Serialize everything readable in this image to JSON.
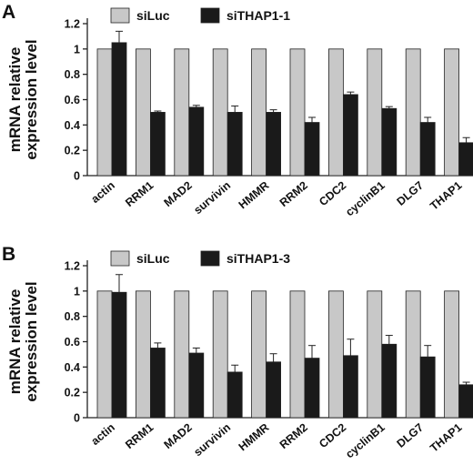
{
  "chart_data": [
    {
      "type": "bar",
      "panel_label": "A",
      "ylabel_line1": "mRNA relative",
      "ylabel_line2": "expression level",
      "ylim": [
        0,
        1.2
      ],
      "yticks": [
        "0",
        "0.2",
        "0.4",
        "0.6",
        "0.8",
        "1",
        "1.2"
      ],
      "categories": [
        "actin",
        "RRM1",
        "MAD2",
        "survivin",
        "HMMR",
        "RRM2",
        "CDC2",
        "cyclinB1",
        "DLG7",
        "THAP1"
      ],
      "legend_position": "top",
      "series": [
        {
          "name": "siLuc",
          "color": "#c8c8c8",
          "values": [
            1,
            1,
            1,
            1,
            1,
            1,
            1,
            1,
            1,
            1
          ],
          "errors": [
            0,
            0,
            0,
            0,
            0,
            0,
            0,
            0,
            0,
            0
          ]
        },
        {
          "name": "siTHAP1-1",
          "color": "#1a1a1a",
          "values": [
            1.05,
            0.5,
            0.54,
            0.5,
            0.5,
            0.42,
            0.64,
            0.53,
            0.42,
            0.26
          ],
          "errors": [
            0.09,
            0.01,
            0.015,
            0.05,
            0.02,
            0.04,
            0.02,
            0.015,
            0.04,
            0.04
          ]
        }
      ]
    },
    {
      "type": "bar",
      "panel_label": "B",
      "ylabel_line1": "mRNA relative",
      "ylabel_line2": "expression level",
      "ylim": [
        0,
        1.2
      ],
      "yticks": [
        "0",
        "0.2",
        "0.4",
        "0.6",
        "0.8",
        "1",
        "1.2"
      ],
      "categories": [
        "actin",
        "RRM1",
        "MAD2",
        "survivin",
        "HMMR",
        "RRM2",
        "CDC2",
        "cyclinB1",
        "DLG7",
        "THAP1"
      ],
      "legend_position": "top",
      "series": [
        {
          "name": "siLuc",
          "color": "#c8c8c8",
          "values": [
            1,
            1,
            1,
            1,
            1,
            1,
            1,
            1,
            1,
            1
          ],
          "errors": [
            0,
            0,
            0,
            0,
            0,
            0,
            0,
            0,
            0,
            0
          ]
        },
        {
          "name": "siTHAP1-3",
          "color": "#1a1a1a",
          "values": [
            0.99,
            0.55,
            0.51,
            0.36,
            0.44,
            0.47,
            0.49,
            0.58,
            0.48,
            0.26
          ],
          "errors": [
            0.14,
            0.04,
            0.04,
            0.055,
            0.065,
            0.1,
            0.13,
            0.07,
            0.09,
            0.02
          ]
        }
      ]
    }
  ]
}
